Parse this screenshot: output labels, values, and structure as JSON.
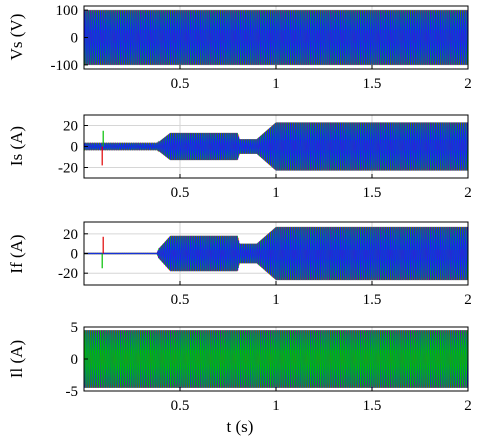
{
  "chart_data": [
    {
      "type": "line",
      "ylabel": "Vs (V)",
      "xlabel": "",
      "xlim": [
        0,
        2
      ],
      "ylim": [
        -115,
        115
      ],
      "xticks": [
        {
          "v": 0.5,
          "label": "0.5"
        },
        {
          "v": 1,
          "label": "1"
        },
        {
          "v": 1.5,
          "label": "1.5"
        },
        {
          "v": 2,
          "label": "2"
        }
      ],
      "yticks": [
        {
          "v": 100,
          "label": "100"
        },
        {
          "v": 0,
          "label": "0"
        },
        {
          "v": -100,
          "label": "-100"
        }
      ],
      "envelope": {
        "t": [
          0,
          2
        ],
        "amp": [
          100,
          100
        ]
      },
      "series": [
        {
          "color": "#e00000"
        },
        {
          "color": "#00c000"
        },
        {
          "color": "#1a1aff"
        }
      ],
      "grid": true
    },
    {
      "type": "line",
      "ylabel": "Is (A)",
      "xlabel": "",
      "xlim": [
        0,
        2
      ],
      "ylim": [
        -30,
        30
      ],
      "xticks": [
        {
          "v": 0.5,
          "label": "0.5"
        },
        {
          "v": 1,
          "label": "1"
        },
        {
          "v": 1.5,
          "label": "1.5"
        },
        {
          "v": 2,
          "label": "2"
        }
      ],
      "yticks": [
        {
          "v": 20,
          "label": "20"
        },
        {
          "v": 0,
          "label": "0"
        },
        {
          "v": -20,
          "label": "-20"
        }
      ],
      "envelope": {
        "t": [
          0,
          0.38,
          0.45,
          0.8,
          0.81,
          0.9,
          1.0,
          2.0
        ],
        "amp": [
          3,
          3,
          13,
          13,
          7,
          7,
          23,
          23
        ]
      },
      "spike": {
        "t": 0.1,
        "up_color": "#00c000",
        "up": 15,
        "down_color": "#e00000",
        "down": -18
      },
      "series": [
        {
          "color": "#e00000"
        },
        {
          "color": "#00c000"
        },
        {
          "color": "#1a1aff"
        }
      ],
      "grid": true
    },
    {
      "type": "line",
      "ylabel": "If (A)",
      "xlabel": "",
      "xlim": [
        0,
        2
      ],
      "ylim": [
        -32,
        32
      ],
      "xticks": [
        {
          "v": 0.5,
          "label": "0.5"
        },
        {
          "v": 1,
          "label": "1"
        },
        {
          "v": 1.5,
          "label": "1.5"
        },
        {
          "v": 2,
          "label": "2"
        }
      ],
      "yticks": [
        {
          "v": 20,
          "label": "20"
        },
        {
          "v": 0,
          "label": "0"
        },
        {
          "v": -20,
          "label": "-20"
        }
      ],
      "envelope": {
        "t": [
          0,
          0.38,
          0.39,
          0.45,
          0.8,
          0.81,
          0.9,
          1.0,
          2.0
        ],
        "amp": [
          0.5,
          0.5,
          5,
          18,
          18,
          10,
          10,
          27,
          27
        ]
      },
      "spike": {
        "t": 0.1,
        "up_color": "#e00000",
        "up": 17,
        "down_color": "#00c000",
        "down": -15
      },
      "series": [
        {
          "color": "#e00000"
        },
        {
          "color": "#00c000"
        },
        {
          "color": "#1a1aff"
        }
      ],
      "grid": true
    },
    {
      "type": "line",
      "ylabel": "Il (A)",
      "xlabel": "t (s)",
      "xlim": [
        0,
        2
      ],
      "ylim": [
        -5,
        5
      ],
      "xticks": [
        {
          "v": 0.5,
          "label": "0.5"
        },
        {
          "v": 1,
          "label": "1"
        },
        {
          "v": 1.5,
          "label": "1.5"
        },
        {
          "v": 2,
          "label": "2"
        }
      ],
      "yticks": [
        {
          "v": 5,
          "label": "5"
        },
        {
          "v": 0,
          "label": "0"
        },
        {
          "v": -5,
          "label": "-5"
        }
      ],
      "envelope": {
        "t": [
          0,
          2
        ],
        "amp": [
          4.5,
          4.5
        ]
      },
      "series": [
        {
          "color": "#e00000"
        },
        {
          "color": "#1a1aff"
        },
        {
          "color": "#00c000"
        }
      ],
      "grid": true
    }
  ]
}
